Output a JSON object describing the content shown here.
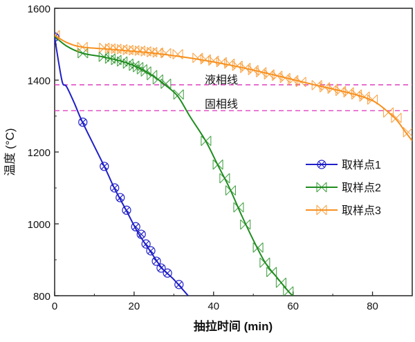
{
  "chart_data": {
    "type": "line",
    "title": "",
    "xlabel": "抽拉时间 (min)",
    "ylabel": "温度 (°C)",
    "xlim": [
      0,
      90
    ],
    "ylim": [
      800,
      1600
    ],
    "xticks": [
      0,
      20,
      40,
      60,
      80
    ],
    "yticks": [
      800,
      1000,
      1200,
      1400,
      1600
    ],
    "grid": false,
    "legend_position": "center-right",
    "reference_lines": [
      {
        "label": "液相线",
        "y": 1387,
        "color": "#e040c0",
        "style": "dashed"
      },
      {
        "label": "固相线",
        "y": 1315,
        "color": "#e040c0",
        "style": "dashed"
      }
    ],
    "series": [
      {
        "name": "取样点1",
        "color": "#1f1fc8",
        "marker": "circle-x",
        "line": [
          [
            0,
            1520
          ],
          [
            1,
            1450
          ],
          [
            2,
            1392
          ],
          [
            3,
            1382
          ],
          [
            5,
            1335
          ],
          [
            7,
            1283
          ],
          [
            12.5,
            1160
          ],
          [
            15,
            1100
          ],
          [
            18,
            1038
          ],
          [
            21,
            975
          ],
          [
            24,
            925
          ],
          [
            27,
            877
          ],
          [
            30,
            845
          ],
          [
            33.6,
            800
          ]
        ],
        "points": [
          [
            0,
            1520
          ],
          [
            7.1,
            1283
          ],
          [
            12.5,
            1160
          ],
          [
            15.1,
            1100
          ],
          [
            16.5,
            1073
          ],
          [
            18.1,
            1038
          ],
          [
            20.4,
            992
          ],
          [
            21.8,
            971
          ],
          [
            23,
            944
          ],
          [
            24.2,
            925
          ],
          [
            25.6,
            896
          ],
          [
            26.8,
            877
          ],
          [
            28.4,
            863
          ],
          [
            31.3,
            831
          ]
        ]
      },
      {
        "name": "取样点2",
        "color": "#1e8c1e",
        "marker": "bowtie-x",
        "line": [
          [
            0,
            1522
          ],
          [
            3,
            1495
          ],
          [
            7,
            1475
          ],
          [
            12,
            1465
          ],
          [
            17,
            1452
          ],
          [
            21,
            1435
          ],
          [
            25,
            1410
          ],
          [
            28,
            1385
          ],
          [
            31,
            1355
          ],
          [
            34,
            1300
          ],
          [
            38,
            1231
          ],
          [
            41,
            1165
          ],
          [
            44,
            1100
          ],
          [
            47,
            1025
          ],
          [
            50,
            955
          ],
          [
            53,
            892
          ],
          [
            56,
            850
          ],
          [
            59,
            810
          ],
          [
            60,
            800
          ]
        ],
        "points": [
          [
            7.1,
            1475
          ],
          [
            12.4,
            1465
          ],
          [
            14,
            1460
          ],
          [
            15.5,
            1456
          ],
          [
            17,
            1452
          ],
          [
            18.5,
            1446
          ],
          [
            20,
            1440
          ],
          [
            21,
            1436
          ],
          [
            22,
            1430
          ],
          [
            23,
            1424
          ],
          [
            24.5,
            1414
          ],
          [
            26,
            1402
          ],
          [
            28,
            1390
          ],
          [
            31.2,
            1360
          ],
          [
            38.1,
            1231
          ],
          [
            41.1,
            1165
          ],
          [
            42.8,
            1127
          ],
          [
            44.3,
            1093
          ],
          [
            46.3,
            1046
          ],
          [
            48,
            998
          ],
          [
            51.2,
            934
          ],
          [
            52.9,
            892
          ],
          [
            54.6,
            866
          ],
          [
            57,
            836
          ],
          [
            58.8,
            812
          ]
        ]
      },
      {
        "name": "取样点3",
        "color": "#f7901e",
        "marker": "bowtie-x",
        "line": [
          [
            0,
            1525
          ],
          [
            3,
            1505
          ],
          [
            7,
            1492
          ],
          [
            15,
            1485
          ],
          [
            25,
            1475
          ],
          [
            35,
            1460
          ],
          [
            45,
            1440
          ],
          [
            55,
            1415
          ],
          [
            65,
            1388
          ],
          [
            75,
            1362
          ],
          [
            80,
            1343
          ],
          [
            83,
            1320
          ],
          [
            86,
            1290
          ],
          [
            88,
            1260
          ],
          [
            90,
            1231
          ]
        ],
        "points": [
          [
            0,
            1525
          ],
          [
            7,
            1492
          ],
          [
            12.5,
            1490
          ],
          [
            14,
            1488
          ],
          [
            15.5,
            1487
          ],
          [
            17,
            1486
          ],
          [
            18.5,
            1484
          ],
          [
            20,
            1483
          ],
          [
            21.5,
            1482
          ],
          [
            23,
            1480
          ],
          [
            24.5,
            1478
          ],
          [
            26,
            1477
          ],
          [
            28,
            1475
          ],
          [
            31,
            1472
          ],
          [
            36,
            1462
          ],
          [
            38,
            1458
          ],
          [
            40,
            1454
          ],
          [
            42,
            1450
          ],
          [
            44,
            1446
          ],
          [
            46,
            1440
          ],
          [
            48,
            1434
          ],
          [
            50,
            1428
          ],
          [
            52,
            1422
          ],
          [
            54,
            1416
          ],
          [
            56,
            1412
          ],
          [
            58,
            1406
          ],
          [
            60,
            1400
          ],
          [
            62,
            1395
          ],
          [
            66,
            1386
          ],
          [
            68,
            1380
          ],
          [
            70,
            1376
          ],
          [
            72,
            1370
          ],
          [
            74,
            1366
          ],
          [
            76,
            1360
          ],
          [
            78,
            1354
          ],
          [
            80,
            1346
          ],
          [
            84,
            1310
          ],
          [
            86,
            1295
          ],
          [
            89,
            1255
          ]
        ]
      }
    ]
  }
}
